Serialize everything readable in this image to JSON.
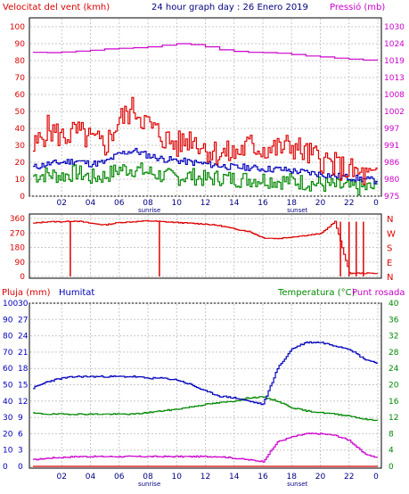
{
  "title": "24 hour graph day : 26 Enero 2019",
  "x_ticks": [
    "02",
    "04",
    "06",
    "08",
    "10",
    "12",
    "14",
    "16",
    "18",
    "20",
    "22",
    "0"
  ],
  "sunrise_label": "sunrise",
  "sunset_label": "sunset",
  "colors": {
    "wind": "#dd0000",
    "wind_avg": "#0000bb",
    "wind_min": "#008800",
    "pressure": "#cc00cc",
    "dir": "#dd0000",
    "temp": "#008800",
    "dew": "#cc00cc",
    "hum": "#0000bb",
    "rain": "#dd0000",
    "grid": "#c8c8c8"
  },
  "chart_data": [
    {
      "type": "line",
      "title": "24 hour graph day : 26 Enero 2019",
      "left_axis_label": "Velocitat del vent (kmh)",
      "right_axis_label": "Pressió (mb)",
      "left_ticks": [
        "100",
        "90",
        "80",
        "70",
        "60",
        "50",
        "40",
        "30",
        "20",
        "10",
        "0"
      ],
      "right_ticks": [
        "1030",
        "1024",
        "1019",
        "1013",
        "1008",
        "1002",
        "997",
        "991",
        "986",
        "980",
        "975"
      ],
      "ylim_left": [
        0,
        100
      ],
      "ylim_right": [
        975,
        1030
      ],
      "x": [
        0,
        1,
        2,
        3,
        4,
        5,
        6,
        7,
        8,
        9,
        10,
        11,
        12,
        13,
        14,
        15,
        16,
        17,
        18,
        19,
        20,
        21,
        22,
        23,
        24
      ],
      "series": [
        {
          "name": "Velocitat del vent",
          "axis": "left",
          "values": [
            28,
            40,
            35,
            38,
            33,
            30,
            45,
            52,
            42,
            35,
            30,
            35,
            28,
            25,
            25,
            30,
            28,
            28,
            30,
            25,
            22,
            18,
            15,
            12,
            10
          ]
        },
        {
          "name": "",
          "axis": "left",
          "values": [
            17,
            19,
            20,
            21,
            19,
            20,
            25,
            27,
            24,
            22,
            21,
            20,
            19,
            18,
            17,
            17,
            16,
            16,
            15,
            14,
            13,
            12,
            11,
            10,
            9
          ]
        },
        {
          "name": "",
          "axis": "left",
          "values": [
            12,
            13,
            12,
            14,
            11,
            12,
            16,
            16,
            14,
            12,
            11,
            12,
            10,
            11,
            10,
            10,
            10,
            9,
            9,
            8,
            7,
            6,
            5,
            5,
            5
          ]
        },
        {
          "name": "Pressió",
          "axis": "right",
          "values": [
            1021.7,
            1021.6,
            1021.8,
            1022.1,
            1022.4,
            1022.8,
            1023.0,
            1023.2,
            1023.5,
            1024.0,
            1024.5,
            1024.2,
            1023.5,
            1022.5,
            1022.0,
            1021.7,
            1021.6,
            1021.4,
            1021.0,
            1020.5,
            1020.2,
            1019.8,
            1019.5,
            1019.2,
            1018.8
          ]
        }
      ]
    },
    {
      "type": "line",
      "title": "",
      "left_ticks": [
        "360",
        "270",
        "180",
        "90",
        "0"
      ],
      "right_ticks": [
        "N",
        "W",
        "S",
        "E",
        "N"
      ],
      "ylim": [
        0,
        360
      ],
      "x": [
        0,
        1,
        2,
        3,
        4,
        5,
        6,
        7,
        8,
        9,
        10,
        11,
        12,
        13,
        14,
        15,
        16,
        17,
        18,
        19,
        20,
        21,
        22,
        23,
        24
      ],
      "series": [
        {
          "name": "",
          "values": [
            330,
            340,
            340,
            345,
            330,
            320,
            335,
            340,
            345,
            340,
            335,
            330,
            325,
            315,
            295,
            280,
            240,
            235,
            245,
            255,
            265,
            340,
            20,
            20,
            20
          ]
        }
      ],
      "dropouts_to_zero_hours": [
        2.6,
        8.8,
        21.4,
        22.0,
        22.5,
        23.0
      ]
    },
    {
      "type": "line",
      "title": "",
      "label_rain": "Pluja (mm)",
      "label_humidity": "Humitat",
      "label_temperature": "Temperatura (°C)",
      "label_dew": "Punt rosada",
      "rain_ticks": [
        "100",
        "90",
        "80",
        "70",
        "60",
        "50",
        "40",
        "30",
        "20",
        "10",
        "0"
      ],
      "temp_ticks_left": [
        "30",
        "27",
        "24",
        "21",
        "18",
        "15",
        "12",
        "9",
        "6",
        "3",
        "0"
      ],
      "temp_ticks_right": [
        "40",
        "36",
        "32",
        "28",
        "24",
        "20",
        "16",
        "12",
        "8",
        "4",
        "0"
      ],
      "x": [
        0,
        1,
        2,
        3,
        4,
        5,
        6,
        7,
        8,
        9,
        10,
        11,
        12,
        13,
        14,
        15,
        16,
        17,
        18,
        19,
        20,
        21,
        22,
        23,
        24
      ],
      "series": [
        {
          "name": "Humitat",
          "axis": "humidity",
          "values": [
            48,
            52,
            54,
            55,
            55,
            55,
            55,
            55,
            54,
            54,
            53,
            50,
            46,
            43,
            42,
            40,
            38,
            60,
            72,
            76,
            76,
            74,
            72,
            66,
            63
          ]
        },
        {
          "name": "Temperatura (°C)",
          "axis": "temperature_right",
          "values": [
            13.0,
            12.8,
            12.8,
            12.8,
            12.8,
            12.8,
            12.8,
            12.8,
            13.2,
            13.6,
            14.0,
            14.6,
            15.2,
            15.6,
            16.0,
            16.8,
            17.0,
            16.0,
            14.4,
            13.6,
            13.2,
            12.8,
            12.4,
            11.6,
            11.2
          ]
        },
        {
          "name": "Punt rosada",
          "axis": "temperature_right",
          "values": [
            1.6,
            2.0,
            2.2,
            2.4,
            2.4,
            2.4,
            2.4,
            2.4,
            2.4,
            2.4,
            2.4,
            2.4,
            2.4,
            2.4,
            2.0,
            1.6,
            1.2,
            6.0,
            7.2,
            8.0,
            8.0,
            7.6,
            6.4,
            3.2,
            2.0
          ]
        },
        {
          "name": "Pluja (mm)",
          "axis": "rain",
          "values": [
            0,
            0,
            0,
            0,
            0,
            0,
            0,
            0,
            0,
            0,
            0,
            0,
            0,
            0,
            0,
            0,
            0,
            0,
            0,
            0,
            0,
            0,
            0,
            0,
            0
          ]
        }
      ]
    }
  ]
}
